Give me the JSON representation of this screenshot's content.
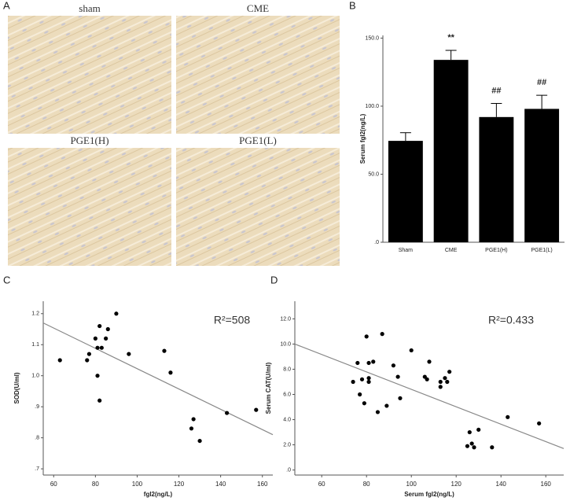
{
  "panel_labels": [
    "A",
    "B",
    "C",
    "D"
  ],
  "micrographs": [
    {
      "label": "sham"
    },
    {
      "label": "CME"
    },
    {
      "label": "PGE1(H)"
    },
    {
      "label": "PGE1(L)"
    }
  ],
  "chart_data": [
    {
      "type": "bar",
      "y_label": "Serum fgl2(ng/L)",
      "categories": [
        "Sham",
        "CME",
        "PGE1(H)",
        "PGE1(L)"
      ],
      "values": [
        74.5,
        134,
        92,
        98
      ],
      "errors": [
        6,
        7,
        10,
        10
      ],
      "annotations": [
        null,
        "**",
        "##",
        "##"
      ],
      "color": "#000000",
      "ylim": [
        0,
        152
      ],
      "yticks": [
        {
          "value": 0,
          "label": ".0"
        },
        {
          "value": 50,
          "label": "50.0"
        },
        {
          "value": 100,
          "label": "100.0"
        },
        {
          "value": 150,
          "label": "150.0"
        }
      ]
    },
    {
      "type": "scatter",
      "y_label": "SOD(U/ml)",
      "x_label": "fgl2(ng/L)",
      "annotation": "R²=508",
      "x": [
        63,
        77,
        76,
        80,
        82,
        81,
        83,
        86,
        85,
        90,
        81,
        82,
        96,
        113,
        116,
        127,
        126,
        130,
        143,
        157
      ],
      "y": [
        1.05,
        1.07,
        1.05,
        1.12,
        1.16,
        1.09,
        1.09,
        1.15,
        1.12,
        1.2,
        1.0,
        0.92,
        1.07,
        1.08,
        1.01,
        0.86,
        0.83,
        0.79,
        0.88,
        0.89
      ],
      "fit_line": {
        "x": [
          55,
          165
        ],
        "y": [
          1.17,
          0.81
        ]
      },
      "color": "#000000",
      "xlim": [
        55,
        165
      ],
      "xticks": [
        60,
        80,
        100,
        120,
        140,
        160
      ],
      "ylim": [
        0.68,
        1.24
      ],
      "yticks": [
        {
          "value": 0.7,
          "label": ".7"
        },
        {
          "value": 0.8,
          "label": ".8"
        },
        {
          "value": 0.9,
          "label": ".9"
        },
        {
          "value": 1.0,
          "label": "1.0"
        },
        1.1,
        1.2
      ]
    },
    {
      "type": "scatter",
      "y_label": "Serum CAT(U/ml)",
      "x_label": "Serum fgl2(ng/L)",
      "annotation": "R²=0.433",
      "x": [
        74,
        76,
        77,
        78,
        79,
        80,
        81,
        81,
        81,
        83,
        85,
        87,
        89,
        92,
        94,
        95,
        100,
        106,
        107,
        108,
        113,
        113,
        115,
        116,
        117,
        125,
        126,
        127,
        128,
        130,
        136,
        143,
        157
      ],
      "y": [
        7.0,
        8.5,
        6.0,
        7.2,
        5.3,
        10.6,
        8.5,
        7.3,
        7.0,
        8.6,
        4.6,
        10.8,
        5.1,
        8.3,
        7.4,
        5.7,
        9.5,
        7.4,
        7.2,
        8.6,
        6.6,
        7.0,
        7.3,
        7.0,
        7.8,
        1.9,
        3.0,
        2.1,
        1.8,
        3.2,
        1.8,
        4.2,
        3.7
      ],
      "fit_line": {
        "x": [
          48,
          168
        ],
        "y": [
          10.0,
          1.7
        ]
      },
      "color": "#000000",
      "xlim": [
        48,
        168
      ],
      "xticks": [
        60,
        80,
        100,
        120,
        140,
        160
      ],
      "ylim": [
        -0.4,
        13.4
      ],
      "yticks": [
        {
          "value": 0,
          "label": ".0"
        },
        {
          "value": 2,
          "label": "2.0"
        },
        {
          "value": 4,
          "label": "4.0"
        },
        {
          "value": 6,
          "label": "6.0"
        },
        {
          "value": 8,
          "label": "8.0"
        },
        {
          "value": 10,
          "label": "10.0"
        },
        {
          "value": 12,
          "label": "12.0"
        }
      ]
    }
  ]
}
